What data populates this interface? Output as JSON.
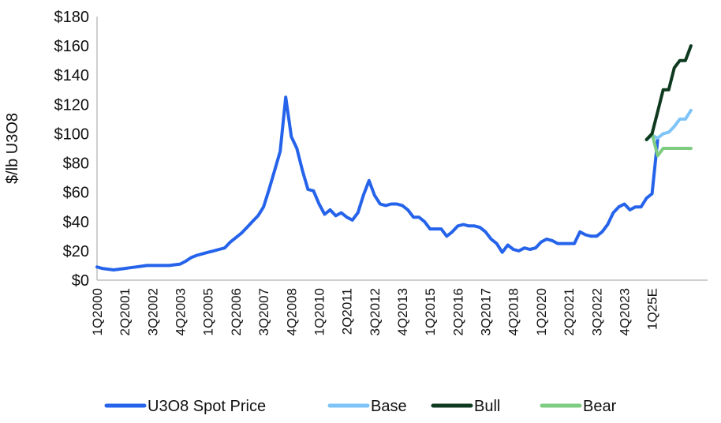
{
  "chart_data": {
    "type": "line",
    "title": "",
    "xlabel": "",
    "ylabel": "$/lb U3O8",
    "ylim": [
      0,
      180
    ],
    "y_ticks": [
      "$0",
      "$20",
      "$40",
      "$60",
      "$80",
      "$100",
      "$120",
      "$140",
      "$160",
      "$180"
    ],
    "x_ticks": [
      "1Q2000",
      "2Q2001",
      "3Q2002",
      "4Q2003",
      "1Q2005",
      "2Q2006",
      "3Q2007",
      "4Q2008",
      "1Q2010",
      "2Q2011",
      "3Q2012",
      "4Q2013",
      "1Q2015",
      "2Q2016",
      "3Q2017",
      "4Q2018",
      "1Q2020",
      "2Q2021",
      "3Q2022",
      "4Q2023",
      "1Q25E"
    ],
    "x_start": "1Q2000",
    "period": "quarter",
    "grid": false,
    "legend_position": "bottom",
    "series": [
      {
        "name": "U3O8 Spot Price",
        "color": "#2563EB",
        "start": "1Q2000",
        "values": [
          9,
          8,
          7.5,
          7,
          7.5,
          8,
          8.5,
          9,
          9.5,
          10,
          10,
          10,
          10,
          10,
          10.5,
          11,
          13,
          15.5,
          17,
          18,
          19,
          20,
          21,
          22,
          26,
          29,
          32,
          36,
          40,
          44,
          50,
          62,
          75,
          88,
          125,
          98,
          90,
          75,
          62,
          61,
          52,
          45,
          48,
          44,
          46,
          43,
          41,
          46,
          58,
          68,
          58,
          52,
          51,
          52,
          52,
          51,
          48,
          43,
          43,
          40,
          35,
          35,
          35,
          30,
          33,
          37,
          38,
          37,
          37,
          36,
          33,
          28,
          25,
          19,
          24,
          21,
          20,
          22,
          21,
          22,
          26,
          28,
          27,
          25,
          25,
          25,
          25,
          33,
          31,
          30,
          30,
          33,
          38,
          46,
          50,
          52,
          48,
          50,
          50,
          56,
          59,
          96
        ]
      },
      {
        "name": "Base",
        "color": "#7EC4F8",
        "start": "4Q2024",
        "values": [
          96,
          99,
          97,
          100,
          101,
          105,
          110,
          110,
          116
        ]
      },
      {
        "name": "Bull",
        "color": "#0F3A1F",
        "start": "4Q2024",
        "values": [
          96,
          100,
          115,
          130,
          130,
          145,
          150,
          150,
          160
        ]
      },
      {
        "name": "Bear",
        "color": "#7DCC82",
        "start": "4Q2024",
        "values": [
          96,
          100,
          85,
          90,
          90,
          90,
          90,
          90,
          90
        ]
      }
    ]
  }
}
